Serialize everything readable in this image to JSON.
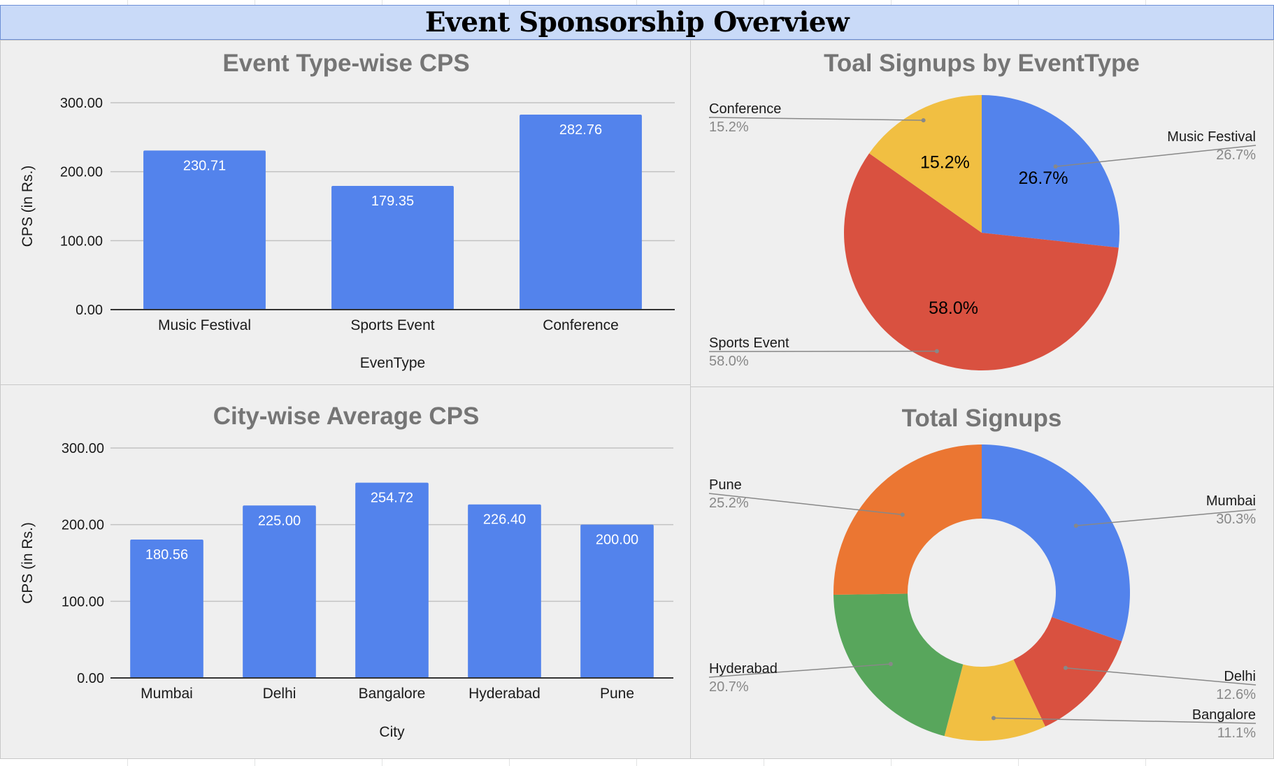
{
  "dashboard": {
    "title": "Event Sponsorship Overview"
  },
  "colors": {
    "bar": "#5383ec",
    "slice_blue": "#5383ec",
    "slice_red": "#d95140",
    "slice_yellow": "#f1bf42",
    "slice_green": "#58a65c",
    "slice_orange": "#eb7632",
    "title_gray": "#757575",
    "panel_bg": "#efefef"
  },
  "chart_data": [
    {
      "type": "bar",
      "title": "Event Type-wise CPS",
      "xlabel": "EvenType",
      "ylabel": "CPS (in Rs.)",
      "categories": [
        "Music Festival",
        "Sports Event",
        "Conference"
      ],
      "values": [
        230.71,
        179.35,
        282.76
      ],
      "value_labels": [
        "230.71",
        "179.35",
        "282.76"
      ],
      "ylim": [
        0,
        300
      ],
      "yticks": [
        "0.00",
        "100.00",
        "200.00",
        "300.00"
      ],
      "grid": true
    },
    {
      "type": "pie",
      "title": "Toal Signups by EventType",
      "categories": [
        "Music Festival",
        "Sports Event",
        "Conference"
      ],
      "values": [
        26.7,
        58.0,
        15.2
      ],
      "labels": [
        "26.7%",
        "58.0%",
        "15.2%"
      ],
      "legend": "callouts"
    },
    {
      "type": "bar",
      "title": "City-wise Average CPS",
      "xlabel": "City",
      "ylabel": "CPS (in Rs.)",
      "categories": [
        "Mumbai",
        "Delhi",
        "Bangalore",
        "Hyderabad",
        "Pune"
      ],
      "values": [
        180.56,
        225.0,
        254.72,
        226.4,
        200.0
      ],
      "value_labels": [
        "180.56",
        "225.00",
        "254.72",
        "226.40",
        "200.00"
      ],
      "ylim": [
        0,
        300
      ],
      "yticks": [
        "0.00",
        "100.00",
        "200.00",
        "300.00"
      ],
      "grid": true
    },
    {
      "type": "pie",
      "donut": true,
      "title": "Total Signups",
      "categories": [
        "Mumbai",
        "Delhi",
        "Bangalore",
        "Hyderabad",
        "Pune"
      ],
      "values": [
        30.3,
        12.6,
        11.1,
        20.7,
        25.2
      ],
      "labels": [
        "30.3%",
        "12.6%",
        "11.1%",
        "20.7%",
        "25.2%"
      ],
      "legend": "callouts"
    }
  ]
}
